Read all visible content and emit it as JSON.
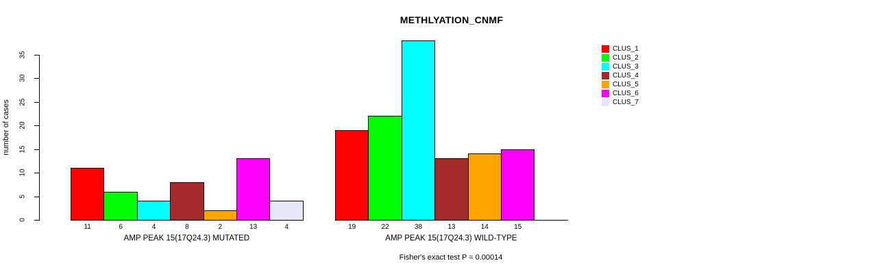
{
  "page": {
    "background": "#ffffff"
  },
  "chart_data": {
    "type": "bar",
    "title": "METHLYATION_CNMF",
    "ylabel": "number of cases",
    "xlabel": "",
    "ylim": [
      0,
      38
    ],
    "yticks": [
      0,
      5,
      10,
      15,
      20,
      25,
      30,
      35
    ],
    "grid": false,
    "legend_position": "right",
    "legend": [
      {
        "label": "CLUS_1",
        "color": "#FF0000"
      },
      {
        "label": "CLUS_2",
        "color": "#00FF00"
      },
      {
        "label": "CLUS_3",
        "color": "#00FFFF"
      },
      {
        "label": "CLUS_4",
        "color": "#A52A2A"
      },
      {
        "label": "CLUS_5",
        "color": "#FFA500"
      },
      {
        "label": "CLUS_6",
        "color": "#FF00FF"
      },
      {
        "label": "CLUS_7",
        "color": "#E6E6FA"
      }
    ],
    "groups": [
      {
        "label": "AMP PEAK 15(17Q24.3) MUTATED",
        "categories": [
          "CLUS_1",
          "CLUS_2",
          "CLUS_3",
          "CLUS_4",
          "CLUS_5",
          "CLUS_6",
          "CLUS_7"
        ],
        "values": [
          11,
          6,
          4,
          8,
          2,
          13,
          4
        ],
        "bar_labels": [
          "11",
          "6",
          "4",
          "8",
          "2",
          "13",
          "4"
        ]
      },
      {
        "label": "AMP PEAK 15(17Q24.3) WILD-TYPE",
        "categories": [
          "CLUS_1",
          "CLUS_2",
          "CLUS_3",
          "CLUS_4",
          "CLUS_5",
          "CLUS_6",
          "CLUS_7"
        ],
        "values": [
          19,
          22,
          38,
          13,
          14,
          15,
          0
        ],
        "bar_labels": [
          "19",
          "22",
          "38",
          "13",
          "14",
          "15",
          ""
        ]
      }
    ],
    "annotation": "Fisher's exact test P = 0.00014"
  }
}
